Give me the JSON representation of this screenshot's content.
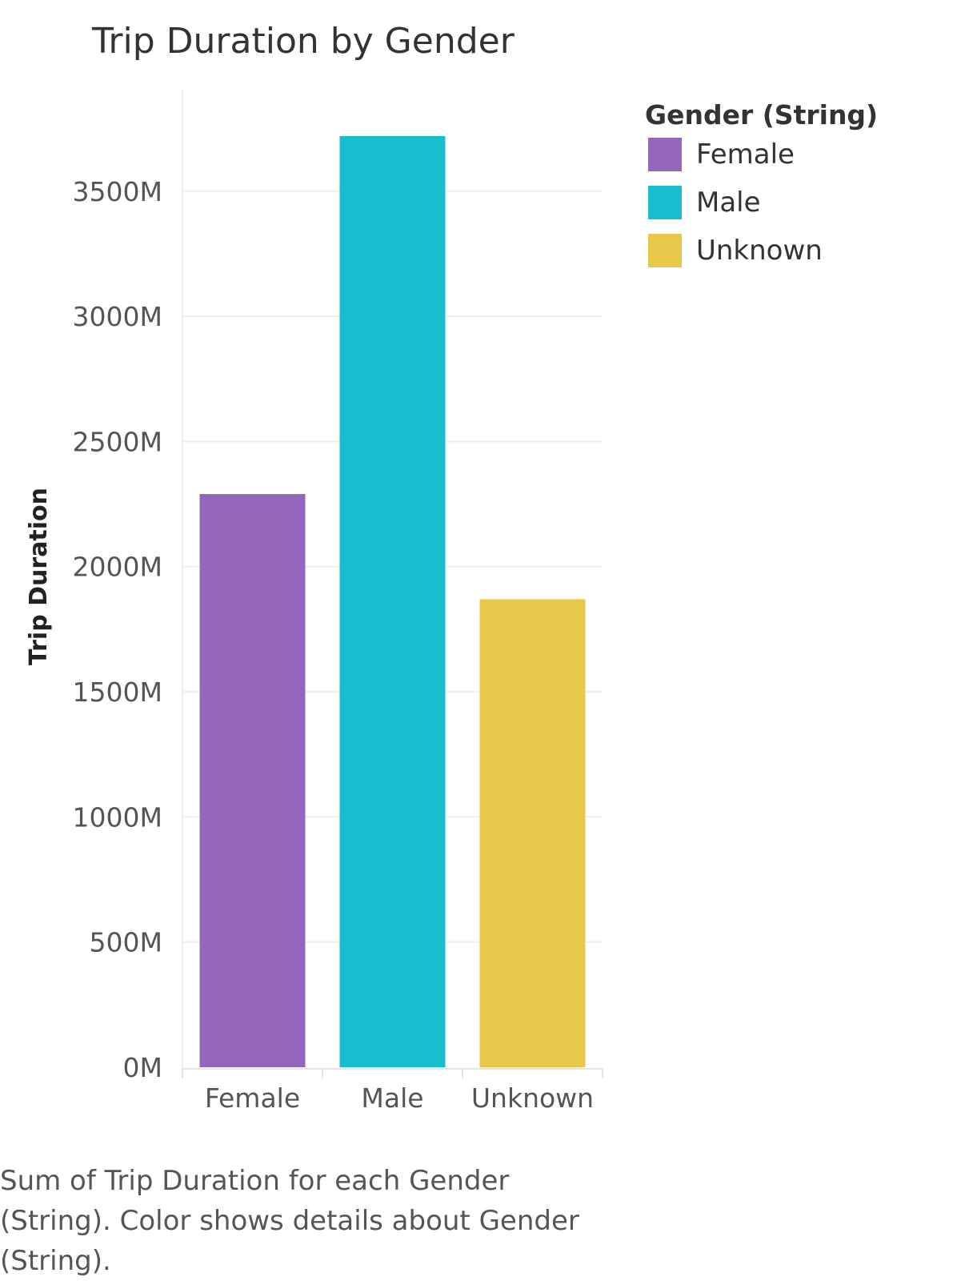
{
  "chart_data": {
    "type": "bar",
    "title": "Trip Duration by Gender",
    "xlabel": "",
    "ylabel": "Trip Duration",
    "categories": [
      "Female",
      "Male",
      "Unknown"
    ],
    "values": [
      2290,
      3720,
      1870
    ],
    "value_unit_suffix": "M",
    "yticks": [
      0,
      500,
      1000,
      1500,
      2000,
      2500,
      3000,
      3500
    ],
    "ytick_labels": [
      "0M",
      "500M",
      "1000M",
      "1500M",
      "2000M",
      "2500M",
      "3000M",
      "3500M"
    ],
    "ylim": [
      0,
      3720
    ],
    "colors": [
      "#9467bd",
      "#17becf",
      "#e8c84a"
    ],
    "grid": true,
    "legend": {
      "title": "Gender (String)",
      "placement": "right",
      "items": [
        "Female",
        "Male",
        "Unknown"
      ]
    }
  },
  "caption": "Sum of Trip Duration for each Gender (String).  Color shows details about Gender (String)."
}
